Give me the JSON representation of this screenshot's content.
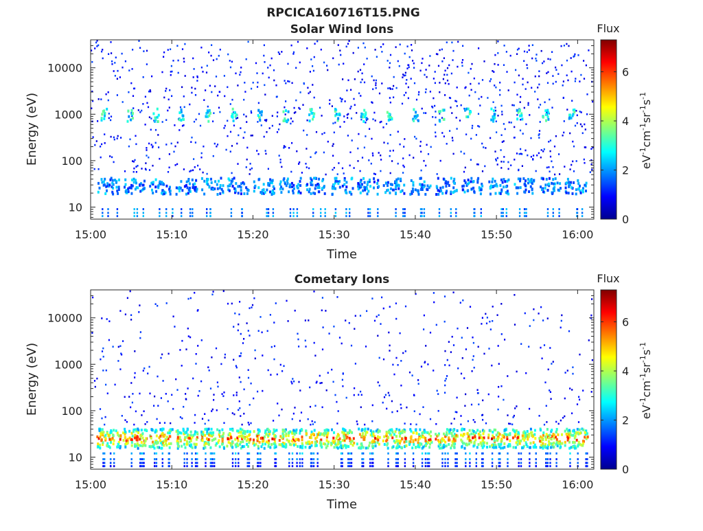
{
  "figure": {
    "title": "RPCICA160716T15.PNG"
  },
  "chart_data": [
    {
      "type": "heatmap",
      "title": "Solar Wind Ions",
      "xlabel": "Time",
      "ylabel": "Energy (eV)",
      "x_range": [
        "15:00",
        "16:02"
      ],
      "y_scale": "log",
      "y_range": [
        5.5,
        40000
      ],
      "x_ticks": [
        "15:00",
        "15:10",
        "15:20",
        "15:30",
        "15:40",
        "15:50",
        "16:00"
      ],
      "y_ticks": [
        10,
        100,
        1000,
        10000
      ],
      "y_tick_labels": [
        "10",
        "100",
        "1000",
        "10000"
      ],
      "colorbar": {
        "title": "Flux",
        "label": "eV-1cm-2sr-1s-1",
        "label_base": "eV",
        "label_cm": "cm",
        "label_sr": "sr",
        "label_s": "s",
        "label_exp": "-1",
        "range": [
          0,
          7.3
        ],
        "ticks": [
          0,
          2,
          4,
          6
        ],
        "tick_labels": [
          "0",
          "2",
          "4",
          "6"
        ]
      },
      "colormap": "jet",
      "features": [
        {
          "name": "solar wind beam",
          "energy_eV": 950,
          "flux": 3,
          "period_min": 3.2
        },
        {
          "name": "low-energy band",
          "energy_eV": 28,
          "flux": 2,
          "period_min": 3.2
        },
        {
          "name": "scattered background",
          "energy_range_eV": [
            50,
            40000
          ],
          "flux": 1
        }
      ]
    },
    {
      "type": "heatmap",
      "title": "Cometary Ions",
      "xlabel": "Time",
      "ylabel": "Energy (eV)",
      "x_range": [
        "15:00",
        "16:02"
      ],
      "y_scale": "log",
      "y_range": [
        5.5,
        40000
      ],
      "x_ticks": [
        "15:00",
        "15:10",
        "15:20",
        "15:30",
        "15:40",
        "15:50",
        "16:00"
      ],
      "y_ticks": [
        10,
        100,
        1000,
        10000
      ],
      "y_tick_labels": [
        "10",
        "100",
        "1000",
        "10000"
      ],
      "colorbar": {
        "title": "Flux",
        "label": "eV-1cm-2sr-1s-1",
        "label_base": "eV",
        "label_cm": "cm",
        "label_sr": "sr",
        "label_s": "s",
        "label_exp": "-1",
        "range": [
          0,
          7.3
        ],
        "ticks": [
          0,
          2,
          4,
          6
        ],
        "tick_labels": [
          "0",
          "2",
          "4",
          "6"
        ]
      },
      "colormap": "jet",
      "features": [
        {
          "name": "cometary ion band",
          "energy_eV": 25,
          "flux": 5,
          "period_min": 3.2
        },
        {
          "name": "scattered background",
          "energy_range_eV": [
            50,
            40000
          ],
          "flux": 1
        }
      ]
    }
  ]
}
